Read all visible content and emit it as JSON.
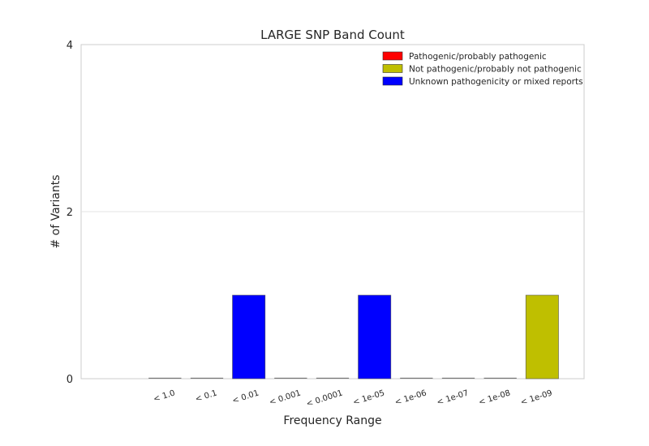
{
  "chart_data": {
    "type": "bar",
    "title": "LARGE SNP Band Count",
    "xlabel": "Frequency Range",
    "ylabel": "# of Variants",
    "ylim": [
      0,
      4
    ],
    "yticks": [
      0,
      2,
      4
    ],
    "grid": "horizontal",
    "legend_placement": "top-right",
    "categories": [
      "< 1.0",
      "< 0.1",
      "< 0.01",
      "< 0.001",
      "< 0.0001",
      "< 1e-05",
      "< 1e-06",
      "< 1e-07",
      "< 1e-08",
      "< 1e-09"
    ],
    "series": [
      {
        "name": "Pathogenic/probably pathogenic",
        "color": "#ff0000",
        "values": [
          0,
          0,
          0,
          0,
          0,
          0,
          0,
          0,
          0,
          0
        ]
      },
      {
        "name": "Not pathogenic/probably not pathogenic",
        "color": "#bfbf00",
        "values": [
          0,
          0,
          0,
          0,
          0,
          0,
          0,
          0,
          0,
          1
        ]
      },
      {
        "name": "Unknown pathogenicity or mixed reports",
        "color": "#0000ff",
        "values": [
          0,
          0,
          1,
          0,
          0,
          1,
          0,
          0,
          0,
          0
        ]
      }
    ]
  }
}
